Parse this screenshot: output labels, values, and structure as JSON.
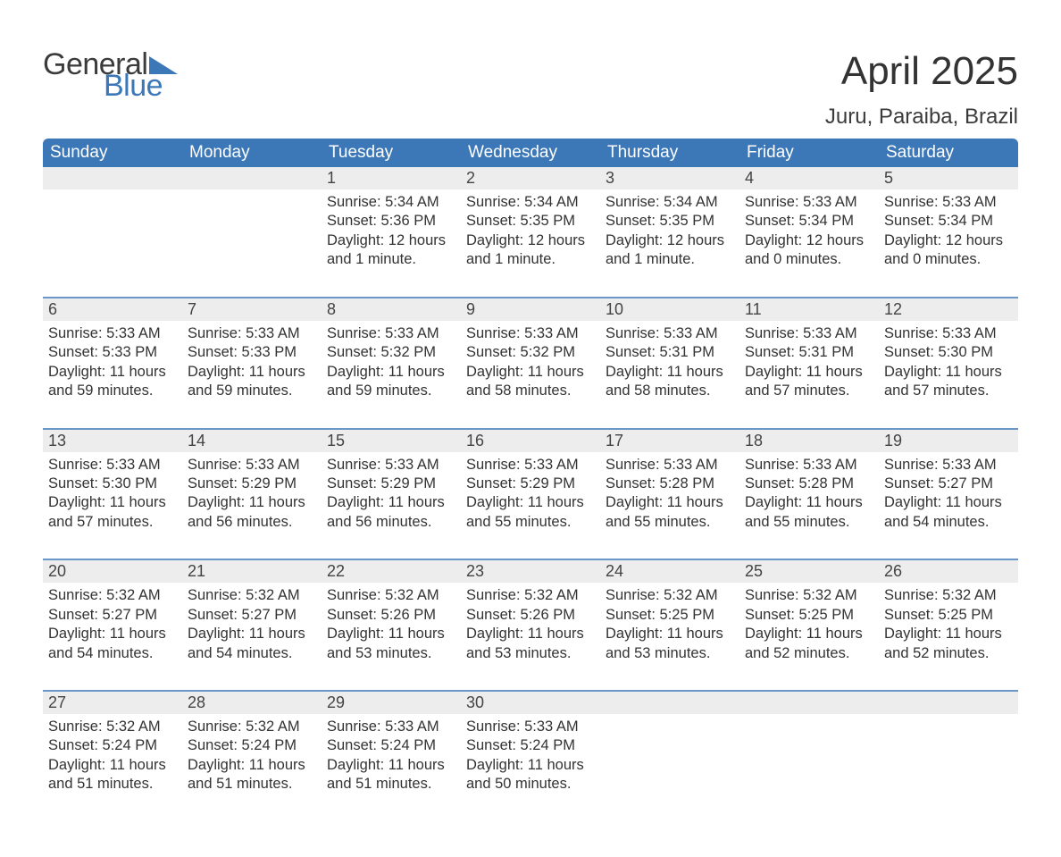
{
  "logo": {
    "text_general": "General",
    "text_blue": "Blue",
    "accent_color": "#3c77b8"
  },
  "header": {
    "month_title": "April 2025",
    "location": "Juru, Paraiba, Brazil"
  },
  "calendar": {
    "header_bg": "#3c77b8",
    "daynum_bg": "#ededed",
    "border_color": "#6a97c8",
    "text_color": "#333333",
    "days_of_week": [
      "Sunday",
      "Monday",
      "Tuesday",
      "Wednesday",
      "Thursday",
      "Friday",
      "Saturday"
    ],
    "weeks": [
      [
        null,
        null,
        {
          "d": "1",
          "sunrise": "5:34 AM",
          "sunset": "5:36 PM",
          "daylight": "12 hours and 1 minute."
        },
        {
          "d": "2",
          "sunrise": "5:34 AM",
          "sunset": "5:35 PM",
          "daylight": "12 hours and 1 minute."
        },
        {
          "d": "3",
          "sunrise": "5:34 AM",
          "sunset": "5:35 PM",
          "daylight": "12 hours and 1 minute."
        },
        {
          "d": "4",
          "sunrise": "5:33 AM",
          "sunset": "5:34 PM",
          "daylight": "12 hours and 0 minutes."
        },
        {
          "d": "5",
          "sunrise": "5:33 AM",
          "sunset": "5:34 PM",
          "daylight": "12 hours and 0 minutes."
        }
      ],
      [
        {
          "d": "6",
          "sunrise": "5:33 AM",
          "sunset": "5:33 PM",
          "daylight": "11 hours and 59 minutes."
        },
        {
          "d": "7",
          "sunrise": "5:33 AM",
          "sunset": "5:33 PM",
          "daylight": "11 hours and 59 minutes."
        },
        {
          "d": "8",
          "sunrise": "5:33 AM",
          "sunset": "5:32 PM",
          "daylight": "11 hours and 59 minutes."
        },
        {
          "d": "9",
          "sunrise": "5:33 AM",
          "sunset": "5:32 PM",
          "daylight": "11 hours and 58 minutes."
        },
        {
          "d": "10",
          "sunrise": "5:33 AM",
          "sunset": "5:31 PM",
          "daylight": "11 hours and 58 minutes."
        },
        {
          "d": "11",
          "sunrise": "5:33 AM",
          "sunset": "5:31 PM",
          "daylight": "11 hours and 57 minutes."
        },
        {
          "d": "12",
          "sunrise": "5:33 AM",
          "sunset": "5:30 PM",
          "daylight": "11 hours and 57 minutes."
        }
      ],
      [
        {
          "d": "13",
          "sunrise": "5:33 AM",
          "sunset": "5:30 PM",
          "daylight": "11 hours and 57 minutes."
        },
        {
          "d": "14",
          "sunrise": "5:33 AM",
          "sunset": "5:29 PM",
          "daylight": "11 hours and 56 minutes."
        },
        {
          "d": "15",
          "sunrise": "5:33 AM",
          "sunset": "5:29 PM",
          "daylight": "11 hours and 56 minutes."
        },
        {
          "d": "16",
          "sunrise": "5:33 AM",
          "sunset": "5:29 PM",
          "daylight": "11 hours and 55 minutes."
        },
        {
          "d": "17",
          "sunrise": "5:33 AM",
          "sunset": "5:28 PM",
          "daylight": "11 hours and 55 minutes."
        },
        {
          "d": "18",
          "sunrise": "5:33 AM",
          "sunset": "5:28 PM",
          "daylight": "11 hours and 55 minutes."
        },
        {
          "d": "19",
          "sunrise": "5:33 AM",
          "sunset": "5:27 PM",
          "daylight": "11 hours and 54 minutes."
        }
      ],
      [
        {
          "d": "20",
          "sunrise": "5:32 AM",
          "sunset": "5:27 PM",
          "daylight": "11 hours and 54 minutes."
        },
        {
          "d": "21",
          "sunrise": "5:32 AM",
          "sunset": "5:27 PM",
          "daylight": "11 hours and 54 minutes."
        },
        {
          "d": "22",
          "sunrise": "5:32 AM",
          "sunset": "5:26 PM",
          "daylight": "11 hours and 53 minutes."
        },
        {
          "d": "23",
          "sunrise": "5:32 AM",
          "sunset": "5:26 PM",
          "daylight": "11 hours and 53 minutes."
        },
        {
          "d": "24",
          "sunrise": "5:32 AM",
          "sunset": "5:25 PM",
          "daylight": "11 hours and 53 minutes."
        },
        {
          "d": "25",
          "sunrise": "5:32 AM",
          "sunset": "5:25 PM",
          "daylight": "11 hours and 52 minutes."
        },
        {
          "d": "26",
          "sunrise": "5:32 AM",
          "sunset": "5:25 PM",
          "daylight": "11 hours and 52 minutes."
        }
      ],
      [
        {
          "d": "27",
          "sunrise": "5:32 AM",
          "sunset": "5:24 PM",
          "daylight": "11 hours and 51 minutes."
        },
        {
          "d": "28",
          "sunrise": "5:32 AM",
          "sunset": "5:24 PM",
          "daylight": "11 hours and 51 minutes."
        },
        {
          "d": "29",
          "sunrise": "5:33 AM",
          "sunset": "5:24 PM",
          "daylight": "11 hours and 51 minutes."
        },
        {
          "d": "30",
          "sunrise": "5:33 AM",
          "sunset": "5:24 PM",
          "daylight": "11 hours and 50 minutes."
        },
        null,
        null,
        null
      ]
    ],
    "labels": {
      "sunrise": "Sunrise: ",
      "sunset": "Sunset: ",
      "daylight": "Daylight: "
    }
  }
}
